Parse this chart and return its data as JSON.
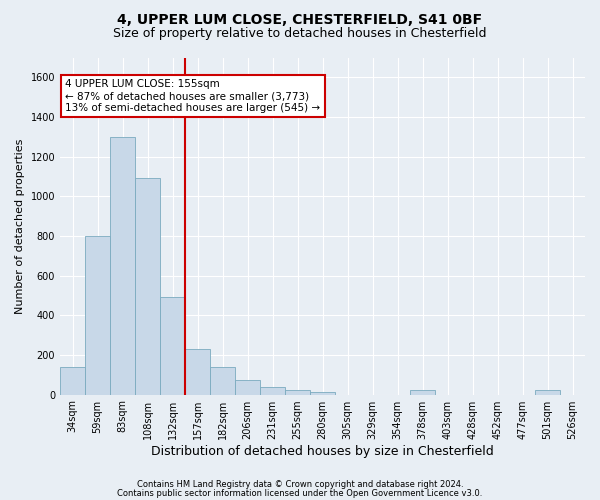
{
  "title1": "4, UPPER LUM CLOSE, CHESTERFIELD, S41 0BF",
  "title2": "Size of property relative to detached houses in Chesterfield",
  "xlabel": "Distribution of detached houses by size in Chesterfield",
  "ylabel": "Number of detached properties",
  "categories": [
    "34sqm",
    "59sqm",
    "83sqm",
    "108sqm",
    "132sqm",
    "157sqm",
    "182sqm",
    "206sqm",
    "231sqm",
    "255sqm",
    "280sqm",
    "305sqm",
    "329sqm",
    "354sqm",
    "378sqm",
    "403sqm",
    "428sqm",
    "452sqm",
    "477sqm",
    "501sqm",
    "526sqm"
  ],
  "values": [
    140,
    800,
    1300,
    1090,
    490,
    230,
    140,
    75,
    40,
    25,
    15,
    0,
    0,
    0,
    25,
    0,
    0,
    0,
    0,
    25,
    0
  ],
  "bar_color": "#c8d8e8",
  "bar_edge_color": "#7aaabf",
  "vline_color": "#cc0000",
  "annotation_line1": "4 UPPER LUM CLOSE: 155sqm",
  "annotation_line2": "← 87% of detached houses are smaller (3,773)",
  "annotation_line3": "13% of semi-detached houses are larger (545) →",
  "annotation_box_color": "#cc0000",
  "annotation_box_bg": "#ffffff",
  "ylim": [
    0,
    1700
  ],
  "yticks": [
    0,
    200,
    400,
    600,
    800,
    1000,
    1200,
    1400,
    1600
  ],
  "footer1": "Contains HM Land Registry data © Crown copyright and database right 2024.",
  "footer2": "Contains public sector information licensed under the Open Government Licence v3.0.",
  "bg_color": "#e8eef4",
  "plot_bg_color": "#e8eef4",
  "grid_color": "#ffffff",
  "title_fontsize": 10,
  "subtitle_fontsize": 9,
  "ylabel_fontsize": 8,
  "xlabel_fontsize": 9,
  "tick_fontsize": 7,
  "footer_fontsize": 6
}
